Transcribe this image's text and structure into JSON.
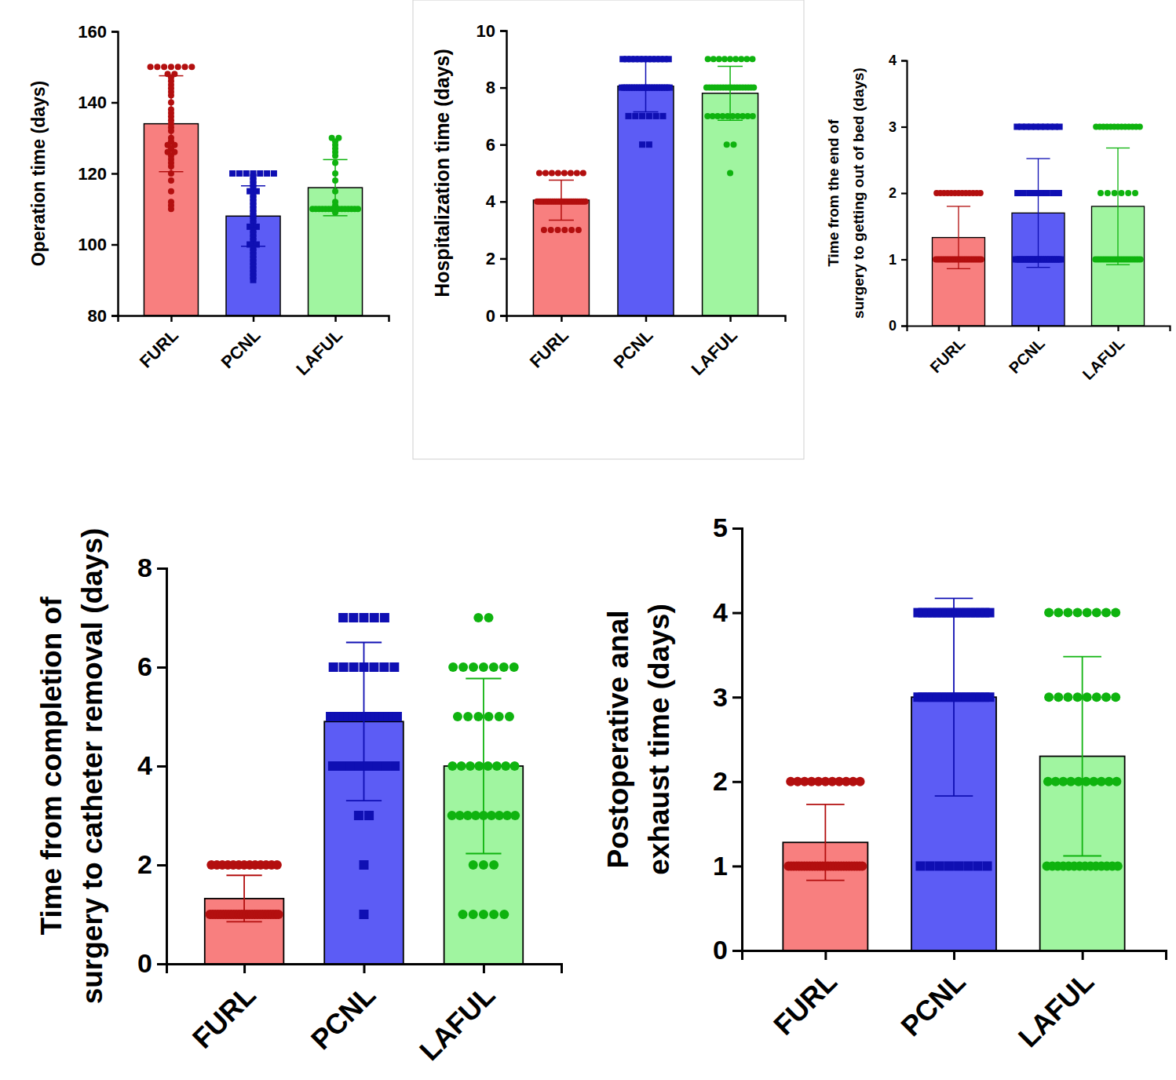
{
  "chart_data": [
    {
      "type": "bar",
      "ylabel": [
        "Operation time (days)"
      ],
      "categories": [
        "FURL",
        "PCNL",
        "LAFUL"
      ],
      "values": [
        134,
        108,
        116
      ],
      "errors": [
        13.5,
        8.5,
        7.9
      ],
      "colors": [
        "#f87f7f",
        "#5c5cf5",
        "#a0f5a0"
      ],
      "points": [
        [
          150,
          150,
          150,
          150,
          150,
          150,
          150,
          148,
          148,
          147,
          146,
          145,
          144,
          143,
          142,
          140,
          138,
          137,
          136,
          135,
          134,
          133,
          132,
          130,
          129,
          128,
          128,
          127,
          126,
          126,
          125,
          124,
          123,
          122,
          120,
          118,
          115,
          112,
          111,
          110
        ],
        [
          120,
          120,
          120,
          120,
          120,
          120,
          120,
          119,
          118,
          117,
          116,
          115,
          115,
          114,
          113,
          112,
          111,
          110,
          109,
          108,
          107,
          106,
          105,
          105,
          104,
          103,
          102,
          101,
          100,
          100,
          99,
          98,
          97,
          96,
          95,
          94,
          93,
          92,
          91,
          90
        ],
        [
          130,
          130,
          129,
          128,
          127,
          126,
          125,
          123,
          120,
          118,
          115,
          112,
          111,
          110,
          110,
          110,
          110,
          110,
          110,
          110,
          110,
          110,
          110,
          110,
          110,
          110,
          110,
          110,
          109
        ]
      ],
      "ylim": [
        80,
        160
      ],
      "yticks": [
        80,
        100,
        120,
        140,
        160
      ]
    },
    {
      "type": "bar",
      "ylabel": [
        "Hospitalization time (days)"
      ],
      "categories": [
        "FURL",
        "PCNL",
        "LAFUL"
      ],
      "values": [
        4.05,
        8.05,
        7.8
      ],
      "errors": [
        0.7,
        0.9,
        0.95
      ],
      "colors": [
        "#f87f7f",
        "#5c5cf5",
        "#a0f5a0"
      ],
      "points": [
        [
          3,
          3,
          3,
          3,
          3,
          3,
          4,
          4,
          4,
          4,
          4,
          4,
          4,
          4,
          4,
          4,
          4,
          4,
          4,
          4,
          4,
          4,
          4,
          4,
          4,
          4,
          4,
          4,
          4,
          4,
          4,
          4,
          5,
          5,
          5,
          5,
          5,
          5,
          5,
          5
        ],
        [
          6,
          6,
          7,
          7,
          7,
          7,
          7,
          7,
          8,
          8,
          8,
          8,
          8,
          8,
          8,
          8,
          8,
          8,
          8,
          8,
          8,
          8,
          8,
          8,
          8,
          8,
          8,
          8,
          9,
          9,
          9,
          9,
          9,
          9,
          9,
          9,
          9,
          9,
          9,
          9
        ],
        [
          5,
          6,
          6,
          7,
          7,
          7,
          7,
          7,
          7,
          7,
          7,
          7,
          7,
          8,
          8,
          8,
          8,
          8,
          8,
          8,
          8,
          8,
          8,
          8,
          8,
          8,
          8,
          8,
          8,
          8,
          8,
          9,
          9,
          9,
          9,
          9,
          9,
          9,
          9,
          9
        ]
      ],
      "ylim": [
        0,
        10
      ],
      "yticks": [
        0,
        2,
        4,
        6,
        8,
        10
      ]
    },
    {
      "type": "bar",
      "ylabel": [
        "Time from the end of",
        "surgery to getting out of bed (days)"
      ],
      "categories": [
        "FURL",
        "PCNL",
        "LAFUL"
      ],
      "values": [
        1.33,
        1.7,
        1.8
      ],
      "errors": [
        0.47,
        0.82,
        0.88
      ],
      "colors": [
        "#f87f7f",
        "#5c5cf5",
        "#a0f5a0"
      ],
      "points": [
        [
          1,
          1,
          1,
          1,
          1,
          1,
          1,
          1,
          1,
          1,
          1,
          1,
          1,
          1,
          1,
          1,
          1,
          1,
          1,
          1,
          1,
          1,
          1,
          1,
          1,
          1,
          1,
          2,
          2,
          2,
          2,
          2,
          2,
          2,
          2,
          2,
          2,
          2,
          2,
          2
        ],
        [
          1,
          1,
          1,
          1,
          1,
          1,
          1,
          1,
          1,
          1,
          1,
          1,
          1,
          1,
          1,
          1,
          1,
          1,
          1,
          1,
          1,
          1,
          2,
          2,
          2,
          2,
          2,
          2,
          2,
          2,
          3,
          3,
          3,
          3,
          3,
          3,
          3,
          3,
          3,
          3
        ],
        [
          1,
          1,
          1,
          1,
          1,
          1,
          1,
          1,
          1,
          1,
          1,
          1,
          1,
          1,
          1,
          1,
          1,
          1,
          1,
          1,
          1,
          2,
          2,
          2,
          2,
          2,
          2,
          3,
          3,
          3,
          3,
          3,
          3,
          3,
          3,
          3,
          3,
          3,
          3,
          3
        ]
      ],
      "ylim": [
        0,
        4
      ],
      "yticks": [
        0,
        1,
        2,
        3,
        4
      ]
    },
    {
      "type": "bar",
      "ylabel": [
        "Time from completion of",
        "surgery to catheter removal (days)"
      ],
      "categories": [
        "FURL",
        "PCNL",
        "LAFUL"
      ],
      "values": [
        1.32,
        4.9,
        4.0
      ],
      "errors": [
        0.47,
        1.6,
        1.77
      ],
      "colors": [
        "#f87f7f",
        "#5c5cf5",
        "#a0f5a0"
      ],
      "points": [
        [
          1,
          1,
          1,
          1,
          1,
          1,
          1,
          1,
          1,
          1,
          1,
          1,
          1,
          1,
          1,
          1,
          1,
          1,
          1,
          1,
          1,
          1,
          1,
          1,
          1,
          1,
          1,
          2,
          2,
          2,
          2,
          2,
          2,
          2,
          2,
          2,
          2,
          2,
          2,
          2
        ],
        [
          1,
          2,
          3,
          3,
          4,
          4,
          4,
          4,
          4,
          4,
          4,
          4,
          5,
          5,
          5,
          5,
          5,
          5,
          5,
          5,
          5,
          5,
          5,
          5,
          5,
          5,
          5,
          5,
          6,
          6,
          6,
          6,
          6,
          6,
          6,
          7,
          7,
          7,
          7,
          7
        ],
        [
          1,
          1,
          1,
          1,
          1,
          2,
          2,
          2,
          3,
          3,
          3,
          3,
          3,
          3,
          3,
          3,
          3,
          4,
          4,
          4,
          4,
          4,
          4,
          4,
          4,
          5,
          5,
          5,
          5,
          5,
          5,
          6,
          6,
          6,
          6,
          6,
          6,
          6,
          7,
          7
        ]
      ],
      "ylim": [
        0,
        8
      ],
      "yticks": [
        0,
        2,
        4,
        6,
        8
      ]
    },
    {
      "type": "bar",
      "ylabel": [
        "Postoperative anal",
        "exhaust time (days)"
      ],
      "categories": [
        "FURL",
        "PCNL",
        "LAFUL"
      ],
      "values": [
        1.28,
        3.0,
        2.3
      ],
      "errors": [
        0.45,
        1.17,
        1.18
      ],
      "colors": [
        "#f87f7f",
        "#5c5cf5",
        "#a0f5a0"
      ],
      "points": [
        [
          1,
          1,
          1,
          1,
          1,
          1,
          1,
          1,
          1,
          1,
          1,
          1,
          1,
          1,
          1,
          1,
          1,
          1,
          1,
          1,
          1,
          1,
          1,
          1,
          1,
          1,
          1,
          1,
          1,
          2,
          2,
          2,
          2,
          2,
          2,
          2,
          2,
          2,
          2,
          2
        ],
        [
          1,
          1,
          1,
          1,
          1,
          1,
          1,
          1,
          3,
          3,
          3,
          3,
          3,
          3,
          3,
          3,
          3,
          3,
          3,
          3,
          3,
          3,
          3,
          3,
          4,
          4,
          4,
          4,
          4,
          4,
          4,
          4,
          4,
          4,
          4,
          4,
          4,
          4,
          4,
          4
        ],
        [
          1,
          1,
          1,
          1,
          1,
          1,
          1,
          1,
          1,
          1,
          1,
          1,
          1,
          1,
          2,
          2,
          2,
          2,
          2,
          2,
          2,
          2,
          2,
          2,
          3,
          3,
          3,
          3,
          3,
          3,
          3,
          3,
          4,
          4,
          4,
          4,
          4,
          4,
          4,
          4
        ]
      ],
      "ylim": [
        0,
        5
      ],
      "yticks": [
        0,
        1,
        2,
        3,
        4,
        5
      ]
    }
  ]
}
